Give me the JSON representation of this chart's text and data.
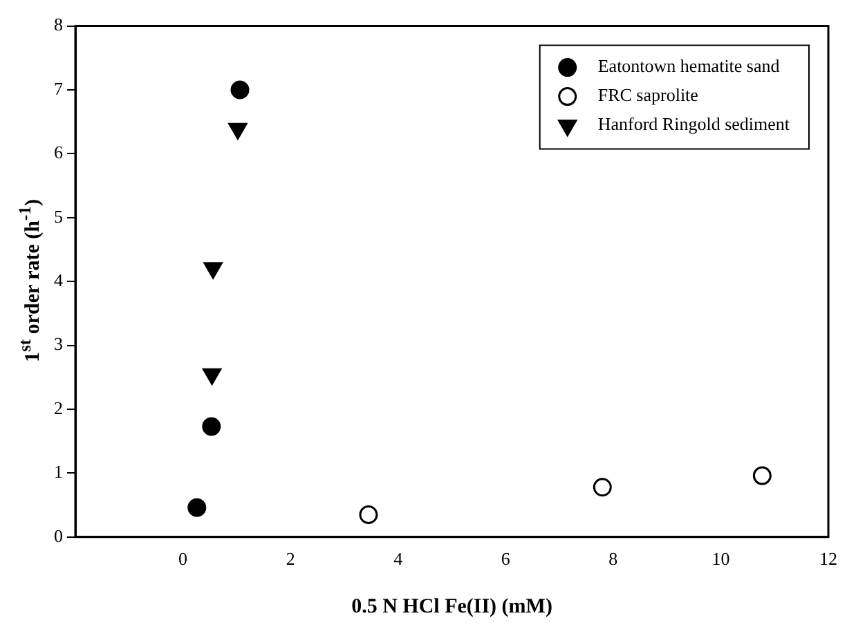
{
  "chart_data": {
    "type": "scatter",
    "xlabel": "0.5 N HCl Fe(II) (mM)",
    "ylabel": "1$^{st}$ order rate (h$^{-1}$)",
    "xlim": [
      -2,
      12
    ],
    "xticks": [
      0,
      2,
      4,
      6,
      8,
      10,
      12
    ],
    "ylim": [
      0,
      8
    ],
    "yticks": [
      0,
      1,
      2,
      3,
      4,
      5,
      6,
      7,
      8
    ],
    "grid": false,
    "legend": "top right",
    "series": [
      {
        "name": "Eatontown hematite sand",
        "color": "#000000",
        "marker": "circle",
        "x": [
          0.26,
          0.53,
          1.06
        ],
        "values": [
          0.46,
          1.73,
          7.0
        ]
      },
      {
        "name": "FRC saprolite",
        "color": "#000000",
        "marker": "circle",
        "x": [
          3.45,
          7.8,
          10.77
        ],
        "values": [
          0.35,
          0.78,
          0.96
        ]
      },
      {
        "name": "Hanford Ringold sediment",
        "color": "#000000",
        "marker": "triangle",
        "x": [
          0.54,
          0.56,
          1.02
        ],
        "values": [
          2.55,
          4.21,
          6.39
        ]
      }
    ]
  }
}
